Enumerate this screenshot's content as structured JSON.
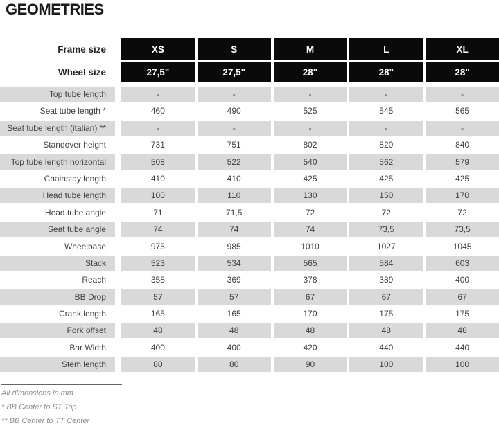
{
  "title": "GEOMETRIES",
  "table": {
    "header": {
      "frame_size_label": "Frame size",
      "wheel_size_label": "Wheel size",
      "columns": [
        "XS",
        "S",
        "M",
        "L",
        "XL"
      ],
      "wheel_sizes": [
        "27,5\"",
        "27,5\"",
        "28\"",
        "28\"",
        "28\""
      ]
    },
    "rows": [
      {
        "label": "Top tube length",
        "values": [
          "-",
          "-",
          "-",
          "-",
          "-"
        ]
      },
      {
        "label": "Seat tube length *",
        "values": [
          "460",
          "490",
          "525",
          "545",
          "565"
        ]
      },
      {
        "label": "Seat tube length (italian) **",
        "values": [
          "-",
          "-",
          "-",
          "-",
          "-"
        ]
      },
      {
        "label": "Standover height",
        "values": [
          "731",
          "751",
          "802",
          "820",
          "840"
        ]
      },
      {
        "label": "Top tube length horizontal",
        "values": [
          "508",
          "522",
          "540",
          "562",
          "579"
        ]
      },
      {
        "label": "Chainstay length",
        "values": [
          "410",
          "410",
          "425",
          "425",
          "425"
        ]
      },
      {
        "label": "Head tube length",
        "values": [
          "100",
          "110",
          "130",
          "150",
          "170"
        ]
      },
      {
        "label": "Head tube angle",
        "values": [
          "71",
          "71,5",
          "72",
          "72",
          "72"
        ]
      },
      {
        "label": "Seat tube angle",
        "values": [
          "74",
          "74",
          "74",
          "73,5",
          "73,5"
        ]
      },
      {
        "label": "Wheelbase",
        "values": [
          "975",
          "985",
          "1010",
          "1027",
          "1045"
        ]
      },
      {
        "label": "Stack",
        "values": [
          "523",
          "534",
          "565",
          "584",
          "603"
        ]
      },
      {
        "label": "Reach",
        "values": [
          "358",
          "369",
          "378",
          "389",
          "400"
        ]
      },
      {
        "label": "BB Drop",
        "values": [
          "57",
          "57",
          "67",
          "67",
          "67"
        ]
      },
      {
        "label": "Crank length",
        "values": [
          "165",
          "165",
          "170",
          "175",
          "175"
        ]
      },
      {
        "label": "Fork offset",
        "values": [
          "48",
          "48",
          "48",
          "48",
          "48"
        ]
      },
      {
        "label": "Bar Width",
        "values": [
          "400",
          "400",
          "420",
          "440",
          "440"
        ]
      },
      {
        "label": "Stem length",
        "values": [
          "80",
          "80",
          "90",
          "100",
          "100"
        ]
      }
    ],
    "footnotes": [
      "All dimensions in mm",
      "* BB Center to ST Top",
      "** BB Center to TT Center"
    ]
  },
  "colors": {
    "header_bg": "#0a0a0a",
    "header_text": "#ffffff",
    "row_alt_bg": "#d9d9d9",
    "row_bg": "#ffffff",
    "text": "#404040",
    "footnote_text": "#8c8c8c"
  }
}
